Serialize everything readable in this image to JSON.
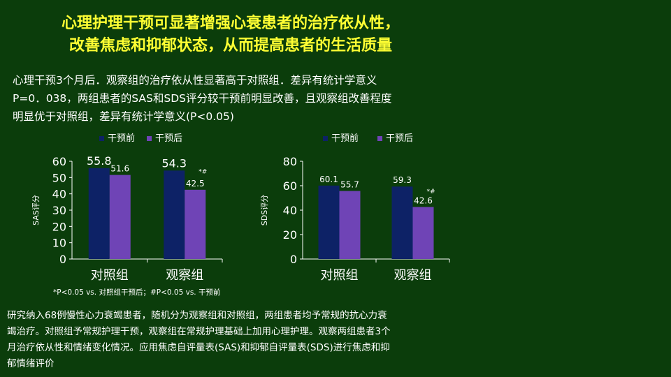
{
  "title": {
    "line1": "心理护理干预可显著增强心衰患者的治疗依从性，",
    "line2": "改善焦虑和抑郁状态，从而提高患者的生活质量"
  },
  "intro": {
    "line1": "心理干预3个月后．观察组的治疗依从性显著高于对照组．差异有统计学意义",
    "line2": "P=0．038，两组患者的SAS和SDS评分较干预前明显改善，且观察组改善程度",
    "line3": "明显优于对照组，差异有统计学意义(P<0.05)"
  },
  "footnote": "*P<0.05 vs. 对照组干预后；#P<0.05 vs. 干预前",
  "method": {
    "line1": "研究纳入68例慢性心力衰竭患者，随机分为观察组和对照组，两组患者均予常规的抗心力衰",
    "line2": "竭治疗。对照组予常规护理干预，观察组在常规护理基础上加用心理护理。观察两组患者3个",
    "line3": "月治疗依从性和情绪变化情况。应用焦虑自评量表(SAS)和抑郁自评量表(SDS)进行焦虑和抑",
    "line4": "郁情绪评价"
  },
  "colors": {
    "before": "#0d2266",
    "after": "#6f44b6",
    "title": "#ffff33",
    "background": "#0b3d0b"
  },
  "chart_data": [
    {
      "type": "bar",
      "title": "",
      "ylabel": "SAS评分",
      "xlabel": "",
      "categories": [
        "对照组",
        "观察组"
      ],
      "series": [
        {
          "name": "干预前",
          "values": [
            55.8,
            54.3
          ],
          "labels": [
            "55.8",
            "54.3"
          ]
        },
        {
          "name": "干预后",
          "values": [
            51.6,
            42.5
          ],
          "labels": [
            "51.6",
            "42.5"
          ]
        }
      ],
      "annotations": [
        "",
        "*#"
      ],
      "yticks": [
        0,
        10,
        20,
        30,
        40,
        50,
        60
      ],
      "ylim": [
        0,
        60
      ],
      "legend": "top"
    },
    {
      "type": "bar",
      "title": "",
      "ylabel": "SDS评分",
      "xlabel": "",
      "categories": [
        "对照组",
        "观察组"
      ],
      "series": [
        {
          "name": "干预前",
          "values": [
            60.1,
            59.3
          ],
          "labels": [
            "60.1",
            "59.3"
          ]
        },
        {
          "name": "干预后",
          "values": [
            55.7,
            42.6
          ],
          "labels": [
            "55.7",
            "42.6"
          ]
        }
      ],
      "annotations": [
        "",
        "*#"
      ],
      "yticks": [
        0,
        20,
        40,
        60,
        80
      ],
      "ylim": [
        0,
        80
      ],
      "legend": "top"
    }
  ]
}
